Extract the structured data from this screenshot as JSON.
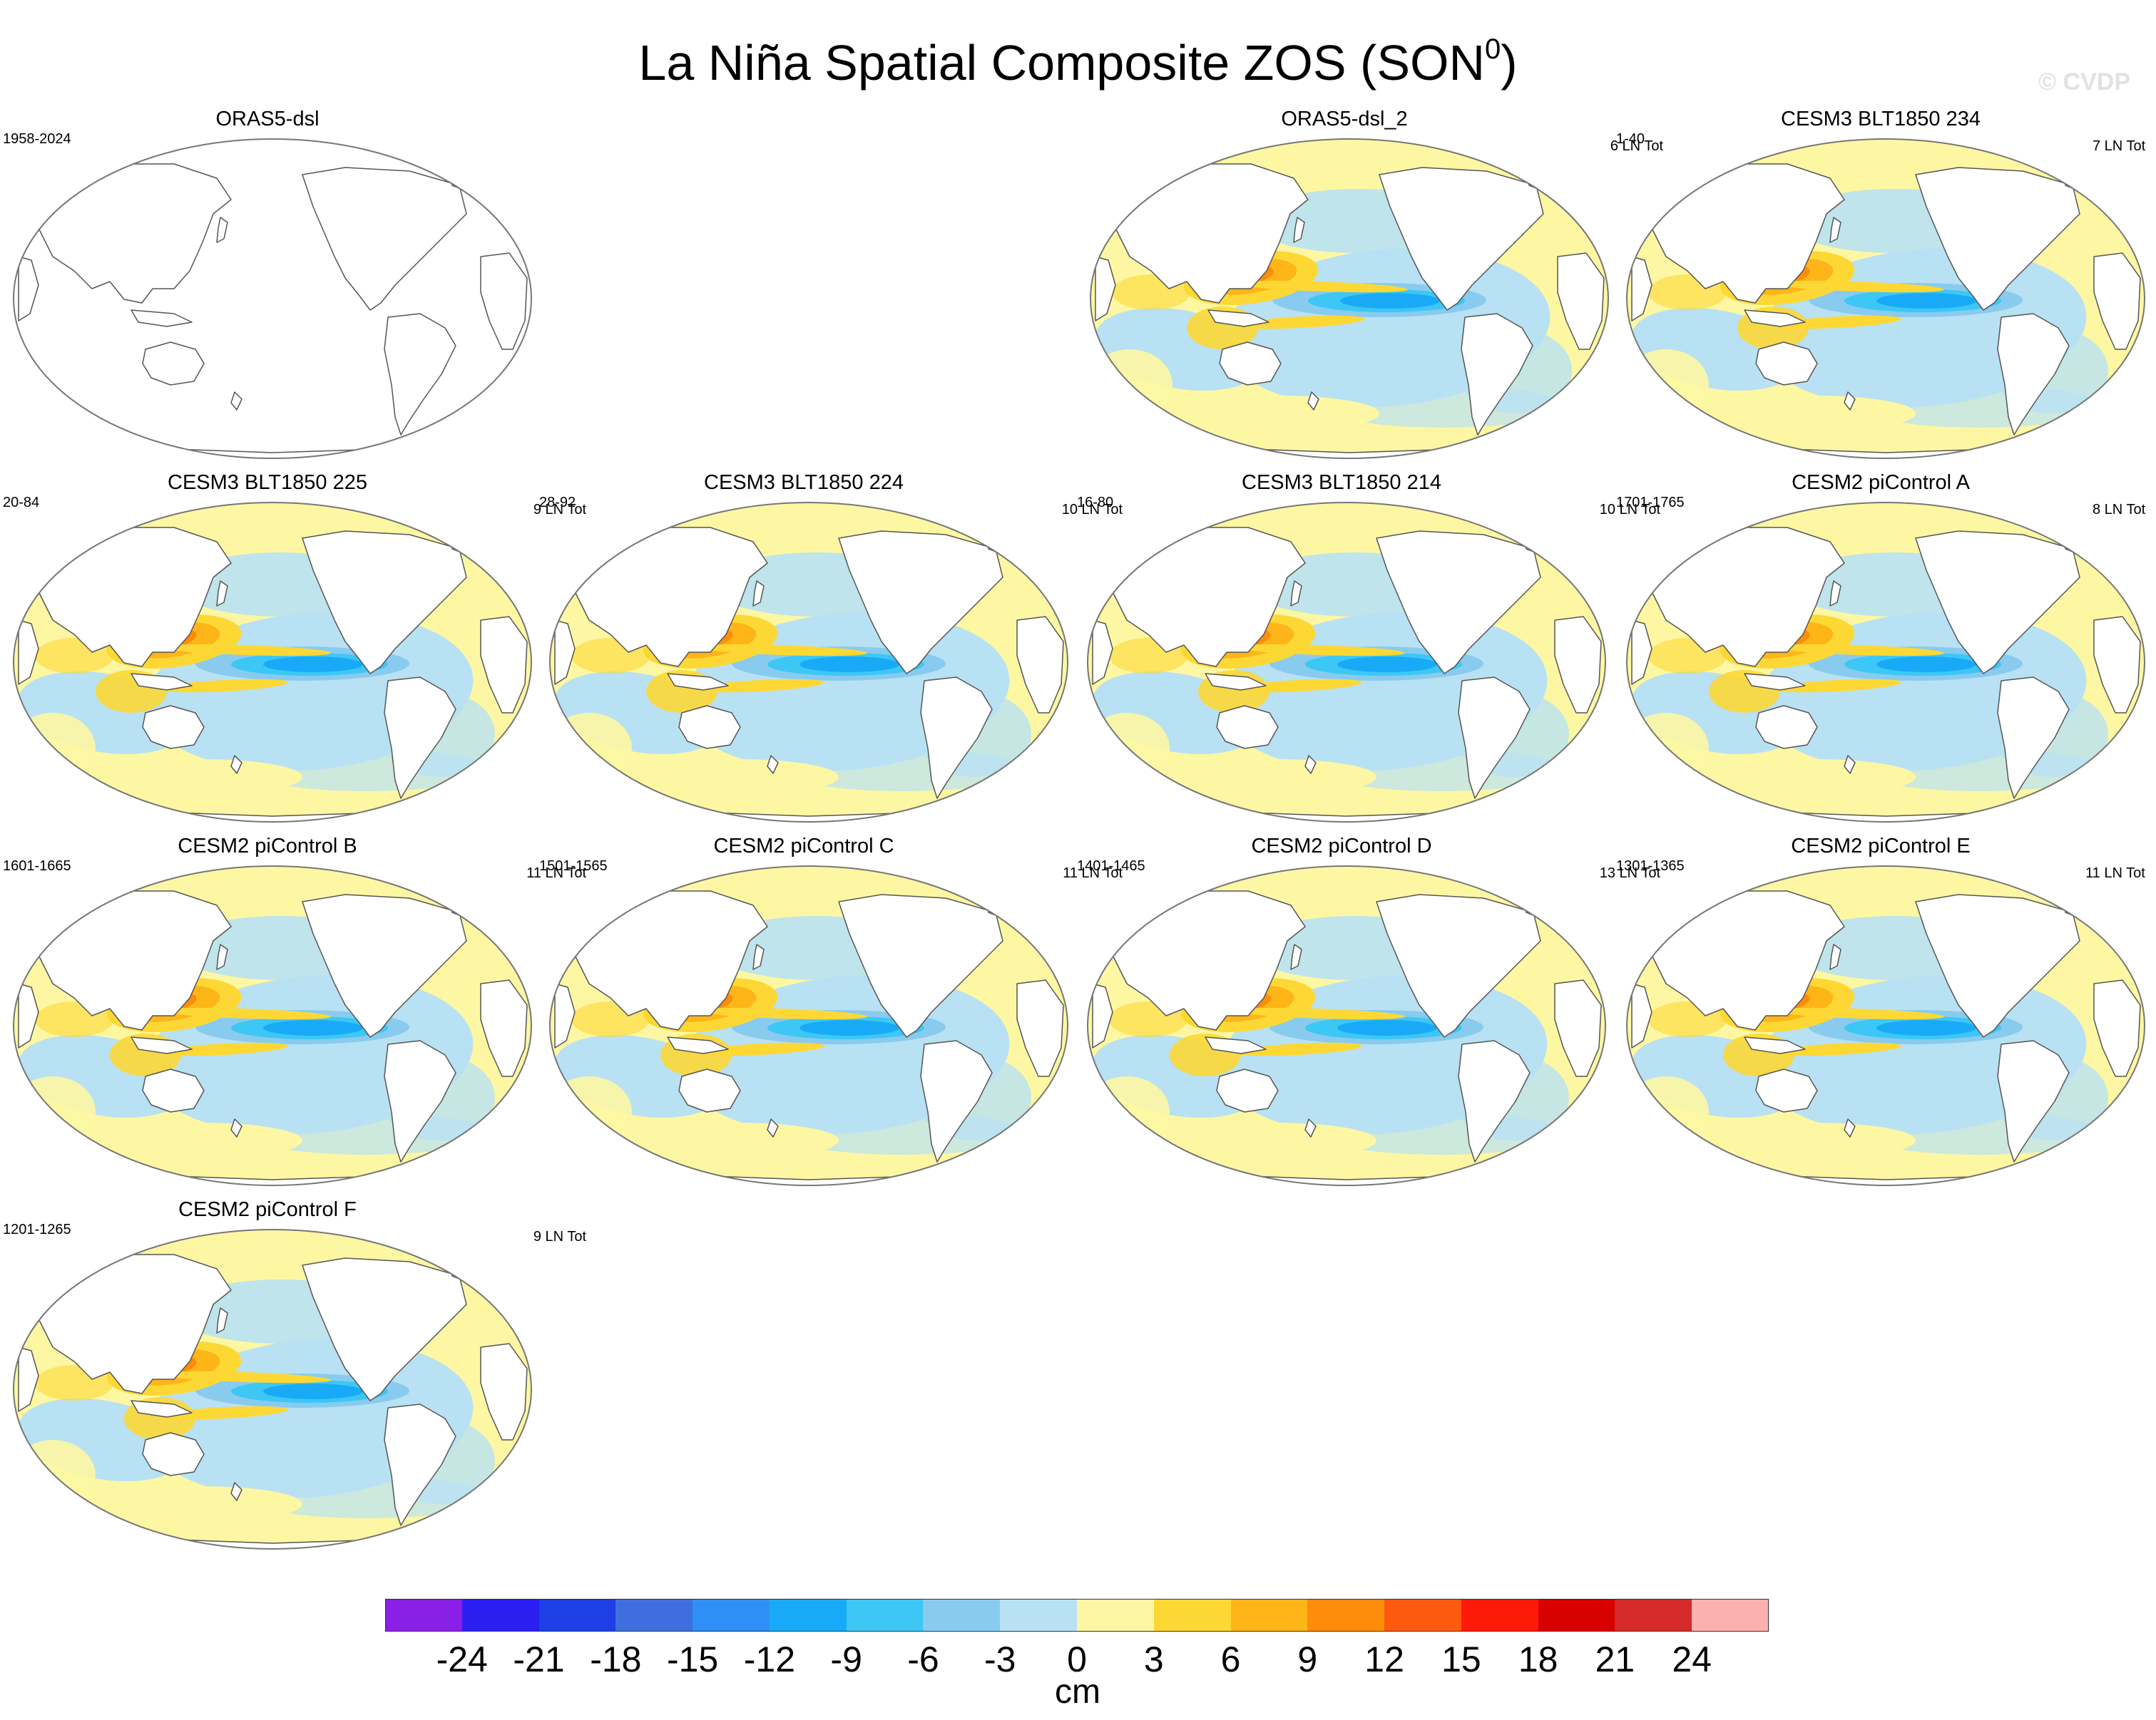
{
  "title": "La Niña Spatial Composite ZOS (SON",
  "title_sup": "0",
  "title_close": ")",
  "watermark": "© CVDP",
  "colors": {
    "land": "#ffffff",
    "coast": "#555555",
    "outline": "#777777",
    "grid": "#f2f2f2"
  },
  "panels": [
    {
      "title": "ORAS5-dsl",
      "left_label": "1958-2024",
      "right_label": "",
      "empty": true
    },
    {
      "title": "ORAS5-dsl_2",
      "left_label": "",
      "right_label": "6 LN Tot"
    },
    {
      "title": "CESM3 BLT1850 234",
      "left_label": "1-40",
      "right_label": "7 LN Tot"
    },
    {
      "title": "CESM3 BLT1850 225",
      "left_label": "20-84",
      "right_label": "9 LN Tot"
    },
    {
      "title": "CESM3 BLT1850 224",
      "left_label": "28-92",
      "right_label": "10 LN Tot"
    },
    {
      "title": "CESM3 BLT1850 214",
      "left_label": "16-80",
      "right_label": "10 LN Tot"
    },
    {
      "title": "CESM2 piControl A",
      "left_label": "1701-1765",
      "right_label": "8 LN Tot"
    },
    {
      "title": "CESM2 piControl B",
      "left_label": "1601-1665",
      "right_label": "11 LN Tot"
    },
    {
      "title": "CESM2 piControl C",
      "left_label": "1501-1565",
      "right_label": "11 LN Tot"
    },
    {
      "title": "CESM2 piControl D",
      "left_label": "1401-1465",
      "right_label": "13 LN Tot"
    },
    {
      "title": "CESM2 piControl E",
      "left_label": "1301-1365",
      "right_label": "11 LN Tot"
    },
    {
      "title": "CESM2 piControl F",
      "left_label": "1201-1265",
      "right_label": "9 LN Tot"
    }
  ],
  "colorbar": {
    "colors": [
      "#8a1fe6",
      "#2a1ff0",
      "#1f3fe6",
      "#3f6fdf",
      "#2f8ff5",
      "#19aaf7",
      "#3cc7f5",
      "#88cbee",
      "#b8e1f3",
      "#fdf7a3",
      "#fdd835",
      "#fdb518",
      "#fd8c0a",
      "#fd5a10",
      "#fd1a08",
      "#d90000",
      "#d42a2a",
      "#fdb0b0"
    ],
    "ticks": [
      "-24",
      "-21",
      "-18",
      "-15",
      "-12",
      "-9",
      "-6",
      "-3",
      "0",
      "3",
      "6",
      "9",
      "12",
      "15",
      "18",
      "21",
      "24"
    ],
    "unit": "cm"
  }
}
